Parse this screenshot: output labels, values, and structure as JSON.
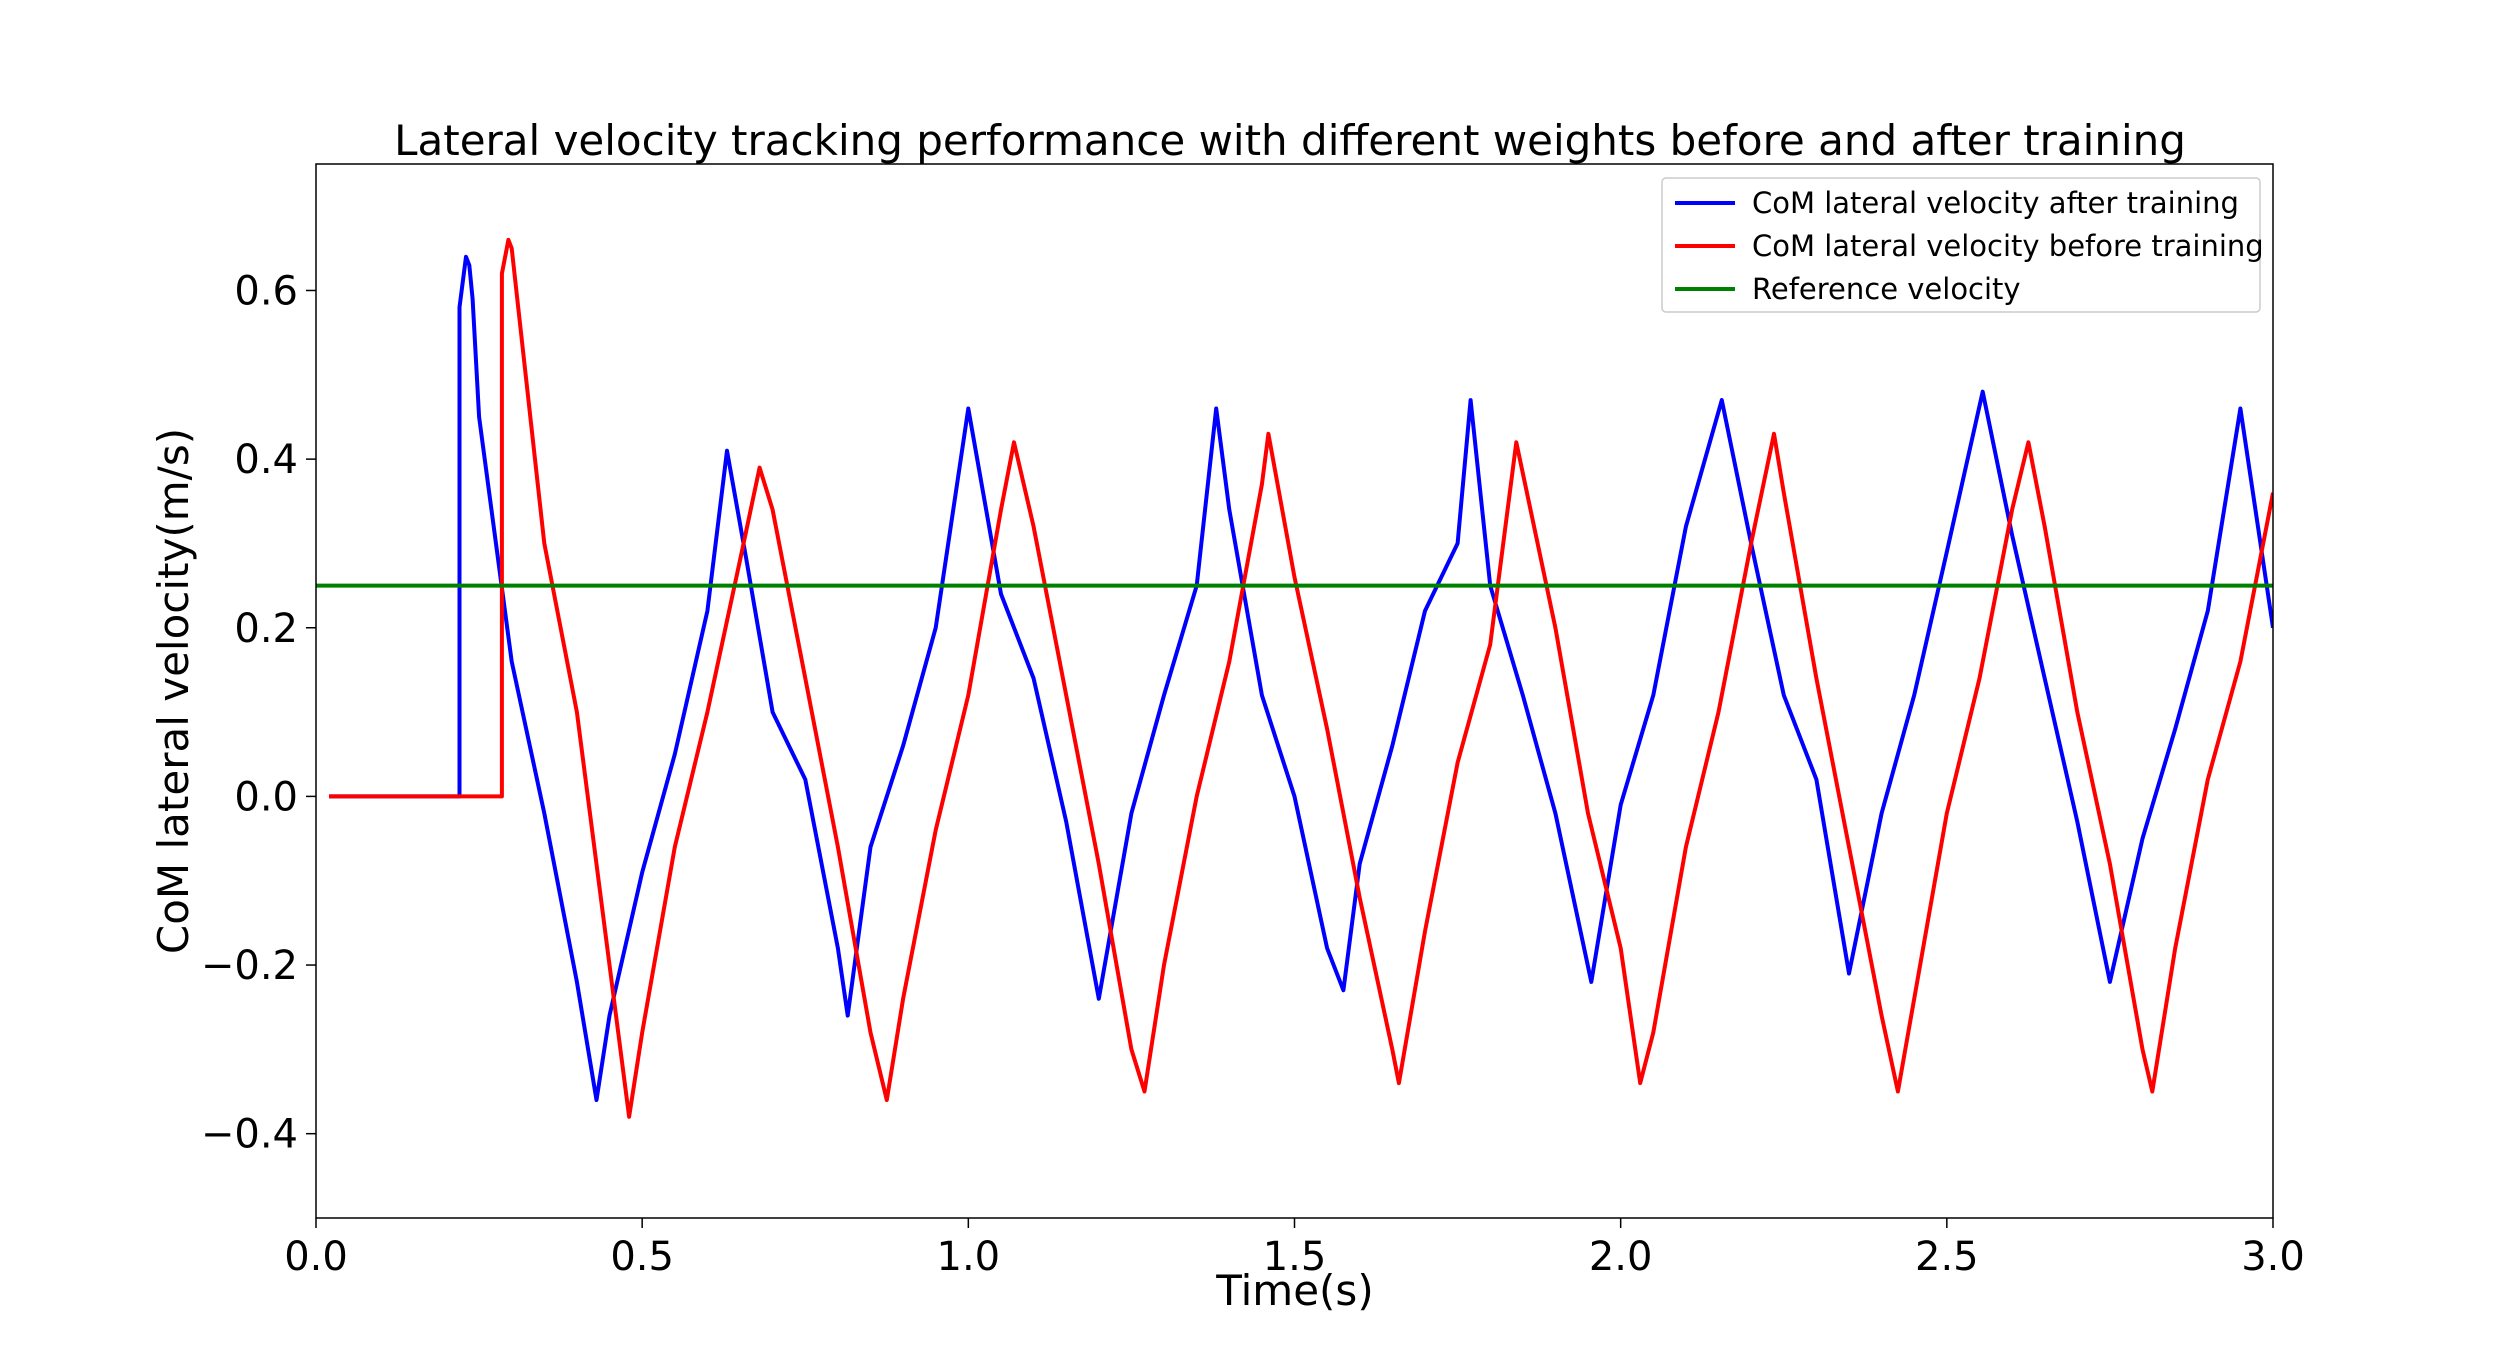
{
  "chart_data": {
    "type": "line",
    "title": "Lateral velocity tracking performance with different weights before and after training",
    "xlabel": "Time(s)",
    "ylabel": "CoM lateral velocity(m/s)",
    "xlim": [
      0.0,
      3.0
    ],
    "ylim": [
      -0.5,
      0.75
    ],
    "grid": false,
    "legend_position": "top-right",
    "x_ticks": [
      0.0,
      0.5,
      1.0,
      1.5,
      2.0,
      2.5,
      3.0
    ],
    "x_tick_labels": [
      "0.0",
      "0.5",
      "1.0",
      "1.5",
      "2.0",
      "2.5",
      "3.0"
    ],
    "y_ticks": [
      -0.4,
      -0.2,
      0.0,
      0.2,
      0.4,
      0.6
    ],
    "y_tick_labels": [
      "−0.4",
      "−0.2",
      "0.0",
      "0.2",
      "0.4",
      "0.6"
    ],
    "series": [
      {
        "name": "CoM lateral velocity after training",
        "color": "#0000ff",
        "x": [
          0.02,
          0.22,
          0.22,
          0.23,
          0.235,
          0.24,
          0.25,
          0.3,
          0.35,
          0.4,
          0.43,
          0.45,
          0.5,
          0.55,
          0.6,
          0.63,
          0.66,
          0.7,
          0.75,
          0.8,
          0.815,
          0.85,
          0.9,
          0.95,
          1.0,
          1.05,
          1.1,
          1.15,
          1.2,
          1.25,
          1.3,
          1.35,
          1.38,
          1.4,
          1.45,
          1.5,
          1.55,
          1.575,
          1.6,
          1.65,
          1.7,
          1.75,
          1.77,
          1.8,
          1.85,
          1.9,
          1.955,
          2.0,
          2.05,
          2.1,
          2.155,
          2.2,
          2.25,
          2.3,
          2.35,
          2.4,
          2.45,
          2.5,
          2.555,
          2.6,
          2.65,
          2.7,
          2.75,
          2.8,
          2.85,
          2.9,
          2.95,
          3.0
        ],
        "y": [
          0.0,
          0.0,
          0.58,
          0.64,
          0.63,
          0.59,
          0.45,
          0.16,
          -0.02,
          -0.22,
          -0.36,
          -0.26,
          -0.09,
          0.05,
          0.22,
          0.41,
          0.28,
          0.1,
          0.02,
          -0.18,
          -0.26,
          -0.06,
          0.06,
          0.2,
          0.46,
          0.24,
          0.14,
          -0.03,
          -0.24,
          -0.02,
          0.12,
          0.25,
          0.46,
          0.34,
          0.12,
          0.0,
          -0.18,
          -0.23,
          -0.08,
          0.06,
          0.22,
          0.3,
          0.47,
          0.25,
          0.12,
          -0.02,
          -0.22,
          -0.01,
          0.12,
          0.32,
          0.47,
          0.3,
          0.12,
          0.02,
          -0.21,
          -0.02,
          0.12,
          0.29,
          0.48,
          0.31,
          0.14,
          -0.03,
          -0.22,
          -0.05,
          0.08,
          0.22,
          0.46,
          0.2
        ]
      },
      {
        "name": "CoM lateral velocity before training",
        "color": "#ff0000",
        "x": [
          0.02,
          0.285,
          0.285,
          0.295,
          0.3,
          0.31,
          0.35,
          0.4,
          0.45,
          0.48,
          0.5,
          0.55,
          0.6,
          0.65,
          0.68,
          0.7,
          0.75,
          0.8,
          0.85,
          0.875,
          0.9,
          0.95,
          1.0,
          1.05,
          1.07,
          1.1,
          1.15,
          1.2,
          1.25,
          1.27,
          1.3,
          1.35,
          1.4,
          1.45,
          1.46,
          1.5,
          1.55,
          1.6,
          1.65,
          1.66,
          1.7,
          1.75,
          1.8,
          1.84,
          1.9,
          1.95,
          2.0,
          2.03,
          2.05,
          2.1,
          2.15,
          2.2,
          2.235,
          2.25,
          2.3,
          2.35,
          2.4,
          2.425,
          2.45,
          2.5,
          2.55,
          2.6,
          2.625,
          2.65,
          2.7,
          2.75,
          2.8,
          2.815,
          2.85,
          2.9,
          2.95,
          3.0
        ],
        "y": [
          0.0,
          0.0,
          0.62,
          0.66,
          0.65,
          0.58,
          0.3,
          0.1,
          -0.2,
          -0.38,
          -0.28,
          -0.06,
          0.1,
          0.28,
          0.39,
          0.34,
          0.14,
          -0.06,
          -0.28,
          -0.36,
          -0.24,
          -0.04,
          0.12,
          0.34,
          0.42,
          0.32,
          0.12,
          -0.08,
          -0.3,
          -0.35,
          -0.2,
          0.0,
          0.16,
          0.37,
          0.43,
          0.26,
          0.08,
          -0.12,
          -0.3,
          -0.34,
          -0.16,
          0.04,
          0.18,
          0.42,
          0.2,
          -0.02,
          -0.18,
          -0.34,
          -0.28,
          -0.06,
          0.1,
          0.3,
          0.43,
          0.36,
          0.14,
          -0.06,
          -0.26,
          -0.35,
          -0.24,
          -0.02,
          0.14,
          0.34,
          0.42,
          0.32,
          0.1,
          -0.08,
          -0.3,
          -0.35,
          -0.18,
          0.02,
          0.16,
          0.36
        ]
      },
      {
        "name": "Reference velocity",
        "color": "#008000",
        "x": [
          0.0,
          3.0
        ],
        "y": [
          0.25,
          0.25
        ]
      }
    ]
  }
}
